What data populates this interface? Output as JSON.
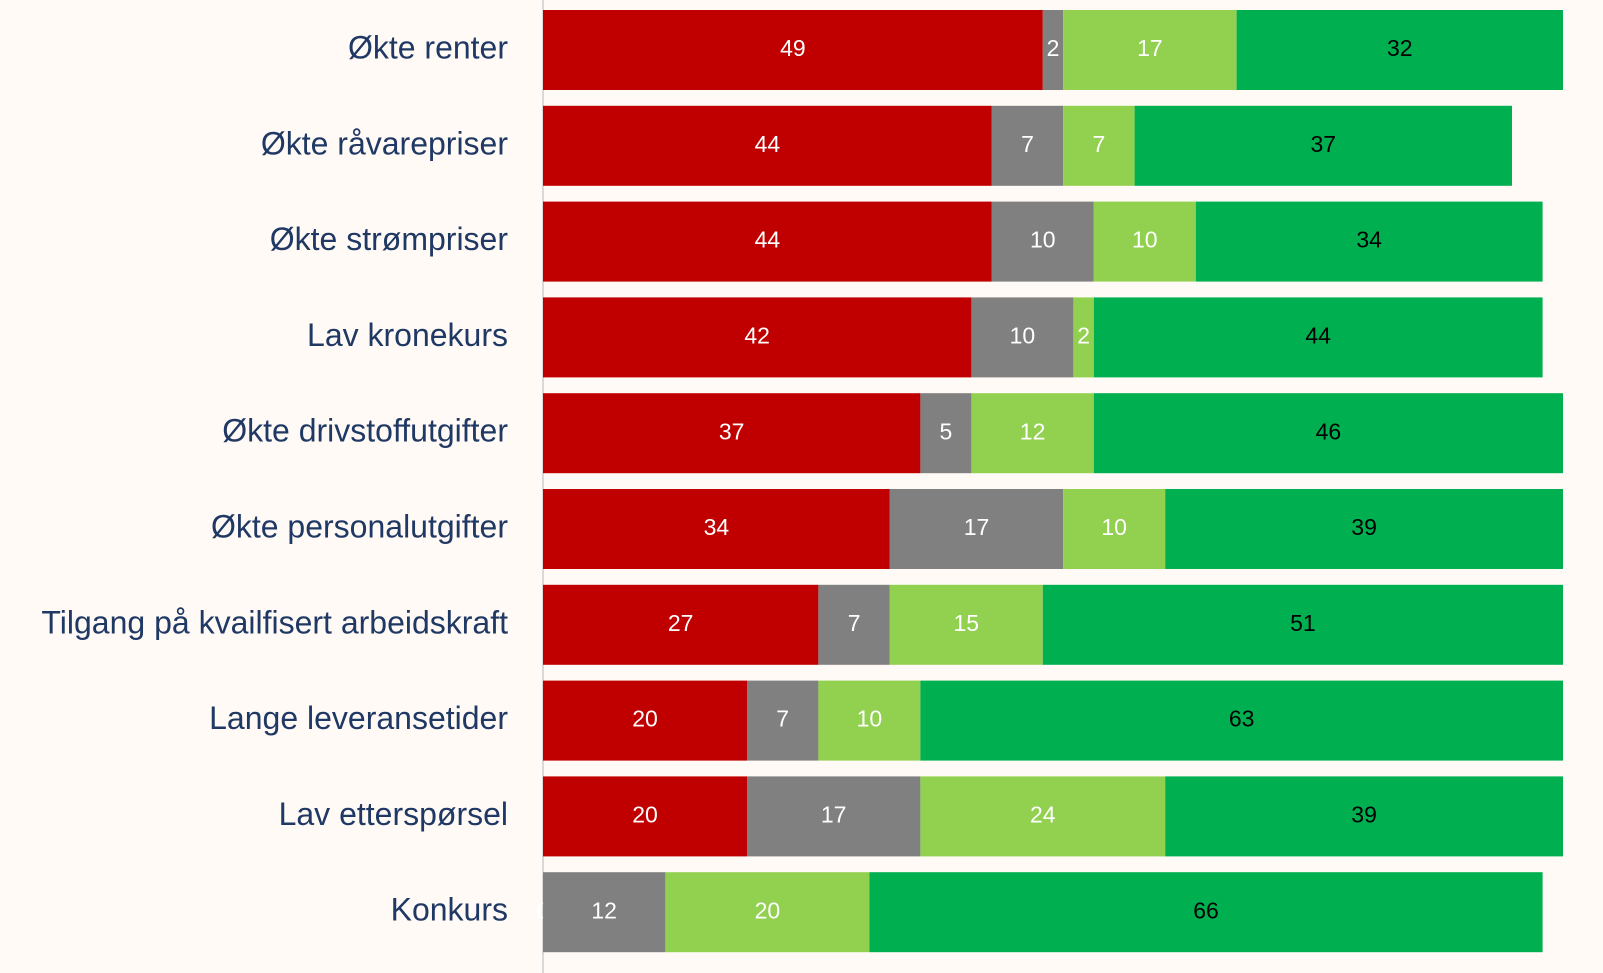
{
  "chart_data": {
    "type": "stacked-bar-horizontal",
    "categories": [
      "Økte renter",
      "Økte råvarepriser",
      "Økte strømpriser",
      "Lav kronekurs",
      "Økte drivstoffutgifter",
      "Økte personalutgifter",
      "Tilgang på kvailfisert arbeidskraft",
      "Lange leveransetider",
      "Lav etterspørsel",
      "Konkurs"
    ],
    "series": [
      {
        "color": "#c00000",
        "values": [
          49,
          44,
          44,
          42,
          37,
          34,
          27,
          20,
          20,
          0
        ]
      },
      {
        "color": "#808080",
        "values": [
          2,
          7,
          10,
          10,
          5,
          17,
          7,
          7,
          17,
          12
        ]
      },
      {
        "color": "#92d050",
        "values": [
          17,
          7,
          10,
          2,
          12,
          10,
          15,
          10,
          24,
          20
        ]
      },
      {
        "color": "#00b050",
        "values": [
          32,
          37,
          34,
          44,
          46,
          39,
          51,
          63,
          39,
          66
        ]
      }
    ],
    "xlim": [
      0,
      100
    ]
  }
}
